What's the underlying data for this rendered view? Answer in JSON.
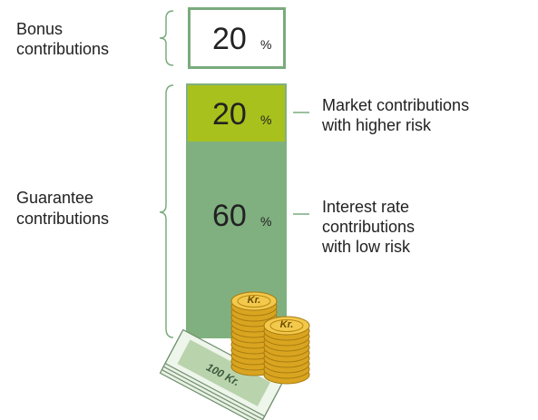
{
  "bonus": {
    "label": [
      "Bonus",
      "contributions"
    ],
    "value": 20,
    "unit": "%"
  },
  "guarantee": {
    "label": [
      "Guarantee",
      "contributions"
    ],
    "segments": [
      {
        "value": 20,
        "unit": "%",
        "label": [
          "Market contributions",
          "with higher risk"
        ]
      },
      {
        "value": 60,
        "unit": "%",
        "label": [
          "Interest rate",
          "contributions",
          "with low risk"
        ]
      }
    ]
  },
  "coins": [
    "Kr.",
    "Kr."
  ],
  "banknote": "100 Kr."
}
